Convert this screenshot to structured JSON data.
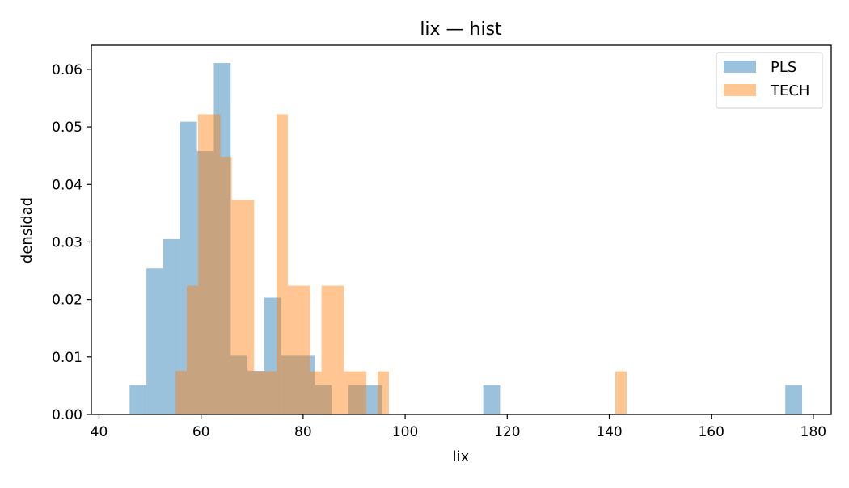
{
  "chart_data": {
    "type": "histogram",
    "title": "lix — hist",
    "xlabel": "lix",
    "ylabel": "densidad",
    "xlim": [
      38.5,
      183.5
    ],
    "ylim": [
      0,
      0.0642
    ],
    "x_ticks": [
      40,
      60,
      80,
      100,
      120,
      140,
      160,
      180
    ],
    "y_ticks": [
      0.0,
      0.01,
      0.02,
      0.03,
      0.04,
      0.05,
      0.06
    ],
    "y_tick_labels": [
      "0.00",
      "0.01",
      "0.02",
      "0.03",
      "0.04",
      "0.05",
      "0.06"
    ],
    "legend_position": "top-right",
    "grid": false,
    "series": [
      {
        "name": "PLS",
        "color": "#1f77b4",
        "alpha": 0.45,
        "bins": [
          {
            "x0": 46.0,
            "x1": 49.3,
            "density": 0.0051
          },
          {
            "x0": 49.3,
            "x1": 52.6,
            "density": 0.0254
          },
          {
            "x0": 52.6,
            "x1": 55.9,
            "density": 0.0305
          },
          {
            "x0": 55.9,
            "x1": 59.2,
            "density": 0.0509
          },
          {
            "x0": 59.2,
            "x1": 62.5,
            "density": 0.0458
          },
          {
            "x0": 62.5,
            "x1": 65.8,
            "density": 0.0611
          },
          {
            "x0": 65.8,
            "x1": 69.1,
            "density": 0.0102
          },
          {
            "x0": 69.1,
            "x1": 72.4,
            "density": 0.0076
          },
          {
            "x0": 72.4,
            "x1": 75.7,
            "density": 0.0203
          },
          {
            "x0": 75.7,
            "x1": 79.0,
            "density": 0.0102
          },
          {
            "x0": 79.0,
            "x1": 82.3,
            "density": 0.0102
          },
          {
            "x0": 82.3,
            "x1": 85.6,
            "density": 0.0051
          },
          {
            "x0": 88.9,
            "x1": 92.2,
            "density": 0.0051
          },
          {
            "x0": 92.2,
            "x1": 95.5,
            "density": 0.0051
          },
          {
            "x0": 115.3,
            "x1": 118.6,
            "density": 0.0051
          },
          {
            "x0": 174.5,
            "x1": 177.8,
            "density": 0.0051
          }
        ]
      },
      {
        "name": "TECH",
        "color": "#ff7f0e",
        "alpha": 0.45,
        "bins": [
          {
            "x0": 55.0,
            "x1": 57.2,
            "density": 0.0076
          },
          {
            "x0": 57.2,
            "x1": 59.4,
            "density": 0.0224
          },
          {
            "x0": 59.4,
            "x1": 63.8,
            "density": 0.0522
          },
          {
            "x0": 63.8,
            "x1": 66.0,
            "density": 0.0448
          },
          {
            "x0": 66.0,
            "x1": 70.4,
            "density": 0.0373
          },
          {
            "x0": 70.4,
            "x1": 72.6,
            "density": 0.0075
          },
          {
            "x0": 72.6,
            "x1": 74.8,
            "density": 0.0075
          },
          {
            "x0": 74.8,
            "x1": 77.0,
            "density": 0.0522
          },
          {
            "x0": 77.0,
            "x1": 81.4,
            "density": 0.0224
          },
          {
            "x0": 81.4,
            "x1": 83.6,
            "density": 0.0075
          },
          {
            "x0": 83.6,
            "x1": 85.8,
            "density": 0.0224
          },
          {
            "x0": 85.8,
            "x1": 88.0,
            "density": 0.0224
          },
          {
            "x0": 88.0,
            "x1": 92.4,
            "density": 0.0075
          },
          {
            "x0": 94.6,
            "x1": 96.8,
            "density": 0.0075
          },
          {
            "x0": 141.2,
            "x1": 143.4,
            "density": 0.0075
          }
        ]
      }
    ]
  }
}
